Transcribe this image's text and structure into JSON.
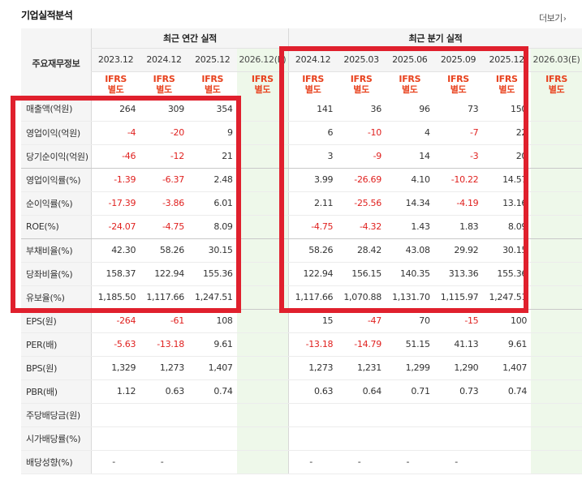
{
  "header": {
    "title": "기업실적분석",
    "more_label": "더보기",
    "more_icon": "chevron-right-icon"
  },
  "table": {
    "row_header_label": "주요재무정보",
    "groups": [
      {
        "label": "최근 연간 실적"
      },
      {
        "label": "최근 분기 실적"
      }
    ],
    "periods": [
      "2023.12",
      "2024.12",
      "2025.12",
      "2026.12(E)",
      "2024.12",
      "2025.03",
      "2025.06",
      "2025.09",
      "2025.12",
      "2026.03(E)"
    ],
    "ifrs": [
      "IFRS 별도",
      "IFRS 별도",
      "IFRS 별도",
      "IFRS 별도",
      "IFRS 별도",
      "IFRS 별도",
      "IFRS 별도",
      "IFRS 별도",
      "IFRS 별도",
      "IFRS 별도"
    ],
    "ifrs_line1": "IFRS",
    "ifrs_line2": "별도",
    "rows": [
      {
        "label": "매출액(억원)",
        "values": [
          "264",
          "309",
          "354",
          "",
          "141",
          "36",
          "96",
          "73",
          "150",
          ""
        ]
      },
      {
        "label": "영업이익(억원)",
        "values": [
          "-4",
          "-20",
          "9",
          "",
          "6",
          "-10",
          "4",
          "-7",
          "22",
          ""
        ]
      },
      {
        "label": "당기순이익(억원)",
        "values": [
          "-46",
          "-12",
          "21",
          "",
          "3",
          "-9",
          "14",
          "-3",
          "20",
          ""
        ]
      },
      {
        "label": "영업이익률(%)",
        "values": [
          "-1.39",
          "-6.37",
          "2.48",
          "",
          "3.99",
          "-26.69",
          "4.10",
          "-10.22",
          "14.57",
          ""
        ]
      },
      {
        "label": "순이익률(%)",
        "values": [
          "-17.39",
          "-3.86",
          "6.01",
          "",
          "2.11",
          "-25.56",
          "14.34",
          "-4.19",
          "13.16",
          ""
        ]
      },
      {
        "label": "ROE(%)",
        "values": [
          "-24.07",
          "-4.75",
          "8.09",
          "",
          "-4.75",
          "-4.32",
          "1.43",
          "1.83",
          "8.09",
          ""
        ]
      },
      {
        "label": "부채비율(%)",
        "values": [
          "42.30",
          "58.26",
          "30.15",
          "",
          "58.26",
          "28.42",
          "43.08",
          "29.92",
          "30.15",
          ""
        ]
      },
      {
        "label": "당좌비율(%)",
        "values": [
          "158.37",
          "122.94",
          "155.36",
          "",
          "122.94",
          "156.15",
          "140.35",
          "313.36",
          "155.36",
          ""
        ]
      },
      {
        "label": "유보율(%)",
        "values": [
          "1,185.50",
          "1,117.66",
          "1,247.51",
          "",
          "1,117.66",
          "1,070.88",
          "1,131.70",
          "1,115.97",
          "1,247.51",
          ""
        ]
      },
      {
        "label": "EPS(원)",
        "values": [
          "-264",
          "-61",
          "108",
          "",
          "15",
          "-47",
          "70",
          "-15",
          "100",
          ""
        ]
      },
      {
        "label": "PER(배)",
        "values": [
          "-5.63",
          "-13.18",
          "9.61",
          "",
          "-13.18",
          "-14.79",
          "51.15",
          "41.13",
          "9.61",
          ""
        ]
      },
      {
        "label": "BPS(원)",
        "values": [
          "1,329",
          "1,273",
          "1,407",
          "",
          "1,273",
          "1,231",
          "1,299",
          "1,290",
          "1,407",
          ""
        ]
      },
      {
        "label": "PBR(배)",
        "values": [
          "1.12",
          "0.63",
          "0.74",
          "",
          "0.63",
          "0.64",
          "0.71",
          "0.73",
          "0.74",
          ""
        ]
      },
      {
        "label": "주당배당금(원)",
        "values": [
          "",
          "",
          "",
          "",
          "",
          "",
          "",
          "",
          "",
          ""
        ]
      },
      {
        "label": "시가배당률(%)",
        "values": [
          "",
          "",
          "",
          "",
          "",
          "",
          "",
          "",
          "",
          ""
        ]
      },
      {
        "label": "배당성향(%)",
        "values": [
          "-",
          "-",
          "",
          "",
          "-",
          "-",
          "-",
          "-",
          "",
          ""
        ]
      }
    ]
  },
  "colors": {
    "negative": "#e0211f",
    "ifrs": "#e8421e",
    "estimate_bg": "#eef8ea",
    "highlight_box": "#e0202d"
  }
}
